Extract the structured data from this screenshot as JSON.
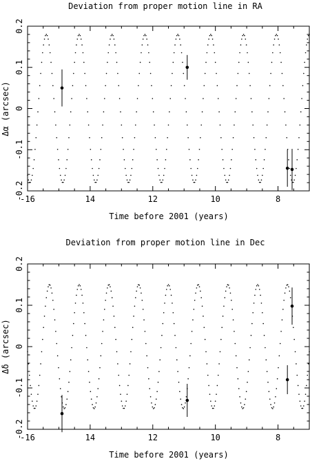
{
  "chart_data": [
    {
      "type": "scatter",
      "title": "Deviation from proper motion line in RA",
      "xlabel": "Time before 2001 (years)",
      "ylabel": "Δα (arcsec)",
      "xlim": [
        -16,
        -7
      ],
      "ylim": [
        -0.2,
        0.2
      ],
      "x_reversed_labels": true,
      "x_ticks": [
        {
          "value": -16,
          "label": "-16"
        },
        {
          "value": -14,
          "label": "14"
        },
        {
          "value": -12,
          "label": "12"
        },
        {
          "value": -10,
          "label": "10"
        },
        {
          "value": -8,
          "label": "8"
        }
      ],
      "y_ticks": [
        {
          "value": -0.2,
          "label": "-0.2"
        },
        {
          "value": -0.1,
          "label": "-0.1"
        },
        {
          "value": 0,
          "label": "0"
        },
        {
          "value": 0.1,
          "label": "0.1"
        },
        {
          "value": 0.2,
          "label": "0.2"
        }
      ],
      "model_curve": {
        "style": "dotted",
        "amplitude": 0.18,
        "period": 1.05,
        "phase_ref": -15.4
      },
      "points": [
        {
          "x": -14.9,
          "y": 0.05,
          "err": 0.045
        },
        {
          "x": -10.9,
          "y": 0.1,
          "err": 0.03
        },
        {
          "x": -7.7,
          "y": -0.145,
          "err": 0.045
        },
        {
          "x": -7.55,
          "y": -0.148,
          "err": 0.05
        }
      ],
      "grid": false
    },
    {
      "type": "scatter",
      "title": "Deviation from proper motion line in Dec",
      "xlabel": "Time before 2001 (years)",
      "ylabel": "Δδ (arcsec)",
      "xlim": [
        -16,
        -7
      ],
      "ylim": [
        -0.2,
        0.2
      ],
      "x_reversed_labels": true,
      "x_ticks": [
        {
          "value": -16,
          "label": "-16"
        },
        {
          "value": -14,
          "label": "14"
        },
        {
          "value": -12,
          "label": "12"
        },
        {
          "value": -10,
          "label": "10"
        },
        {
          "value": -8,
          "label": "8"
        }
      ],
      "y_ticks": [
        {
          "value": -0.2,
          "label": "-0.2"
        },
        {
          "value": -0.1,
          "label": "-0.1"
        },
        {
          "value": 0,
          "label": "0"
        },
        {
          "value": 0.1,
          "label": "0.1"
        },
        {
          "value": 0.2,
          "label": "0.2"
        }
      ],
      "model_curve": {
        "style": "dotted",
        "amplitude": 0.15,
        "period": 0.95,
        "phase_ref": -15.3
      },
      "points": [
        {
          "x": -14.9,
          "y": -0.162,
          "err": 0.045
        },
        {
          "x": -10.9,
          "y": -0.13,
          "err": 0.04
        },
        {
          "x": -7.7,
          "y": -0.08,
          "err": 0.035
        },
        {
          "x": -7.55,
          "y": 0.098,
          "err": 0.045
        }
      ],
      "grid": false
    }
  ]
}
